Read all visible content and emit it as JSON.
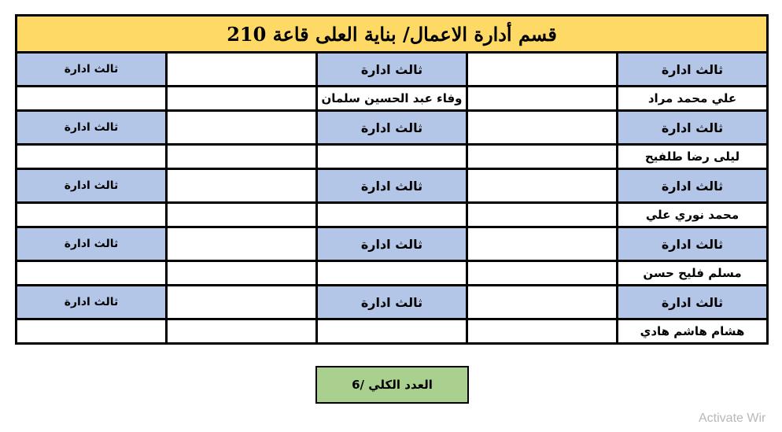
{
  "title": "قسم أدارة الاعمال/ بناية العلى قاعة 210",
  "grade_label": "ثالث ادارة",
  "rows": [
    {
      "name_right": "علي محمد مراد",
      "name_middle": "وفاء عبد الحسين سلمان"
    },
    {
      "name_right": "ليلى رضا طلفيح",
      "name_middle": ""
    },
    {
      "name_right": "محمد نوري علي",
      "name_middle": ""
    },
    {
      "name_right": "مسلم فليح حسن",
      "name_middle": ""
    },
    {
      "name_right": "هشام هاشم هادي",
      "name_middle": ""
    }
  ],
  "total_label": "العدد الكلي /6",
  "watermark": "Activate Wir",
  "colors": {
    "title_bg": "#FFD966",
    "grade_bg": "#B4C6E7",
    "total_bg": "#A9D08E"
  }
}
